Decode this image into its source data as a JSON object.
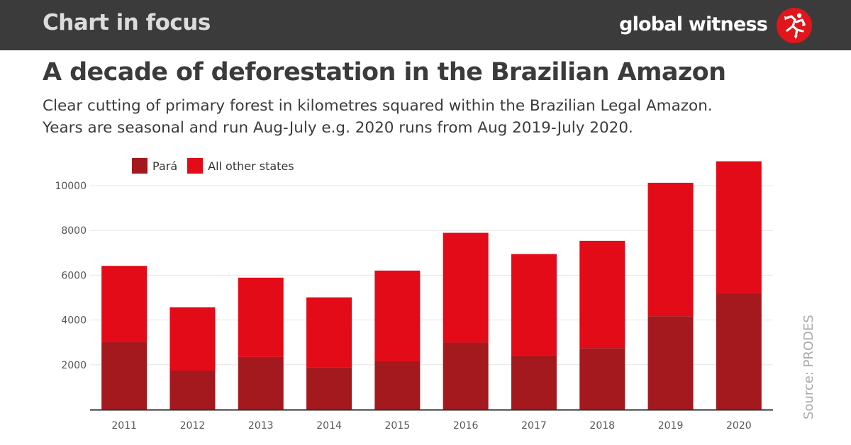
{
  "header": {
    "section_label": "Chart in focus",
    "brand": "global witness",
    "brand_logo_icon": "running-figure-logo-icon",
    "background": "#3b3b3b"
  },
  "headline": "A decade of deforestation in the Brazilian Amazon",
  "subtitle_line1": "Clear cutting of primary forest in kilometres squared within the Brazilian Legal Amazon.",
  "subtitle_line2": "Years are seasonal and run Aug-July e.g. 2020 runs from Aug 2019-July 2020.",
  "source": "Source: PRODES",
  "colors": {
    "para": "#a3191e",
    "other": "#e20b17",
    "brand_red": "#e2151b",
    "grid": "#e6e6e6"
  },
  "chart_data": {
    "type": "bar",
    "stacked": true,
    "categories": [
      "2011",
      "2012",
      "2013",
      "2014",
      "2015",
      "2016",
      "2017",
      "2018",
      "2019",
      "2020"
    ],
    "series": [
      {
        "name": "Pará",
        "values": [
          3008,
          1741,
          2346,
          1887,
          2153,
          2992,
          2433,
          2744,
          4172,
          5192
        ]
      },
      {
        "name": "All other states",
        "values": [
          3410,
          2830,
          3545,
          3125,
          4054,
          4901,
          4514,
          4792,
          5957,
          5896
        ]
      }
    ],
    "yticks": [
      2000,
      4000,
      6000,
      8000,
      10000
    ],
    "ylim": [
      0,
      11000
    ],
    "grid": true,
    "legend_position": "top-left",
    "title": "",
    "xlabel": "",
    "ylabel": ""
  }
}
